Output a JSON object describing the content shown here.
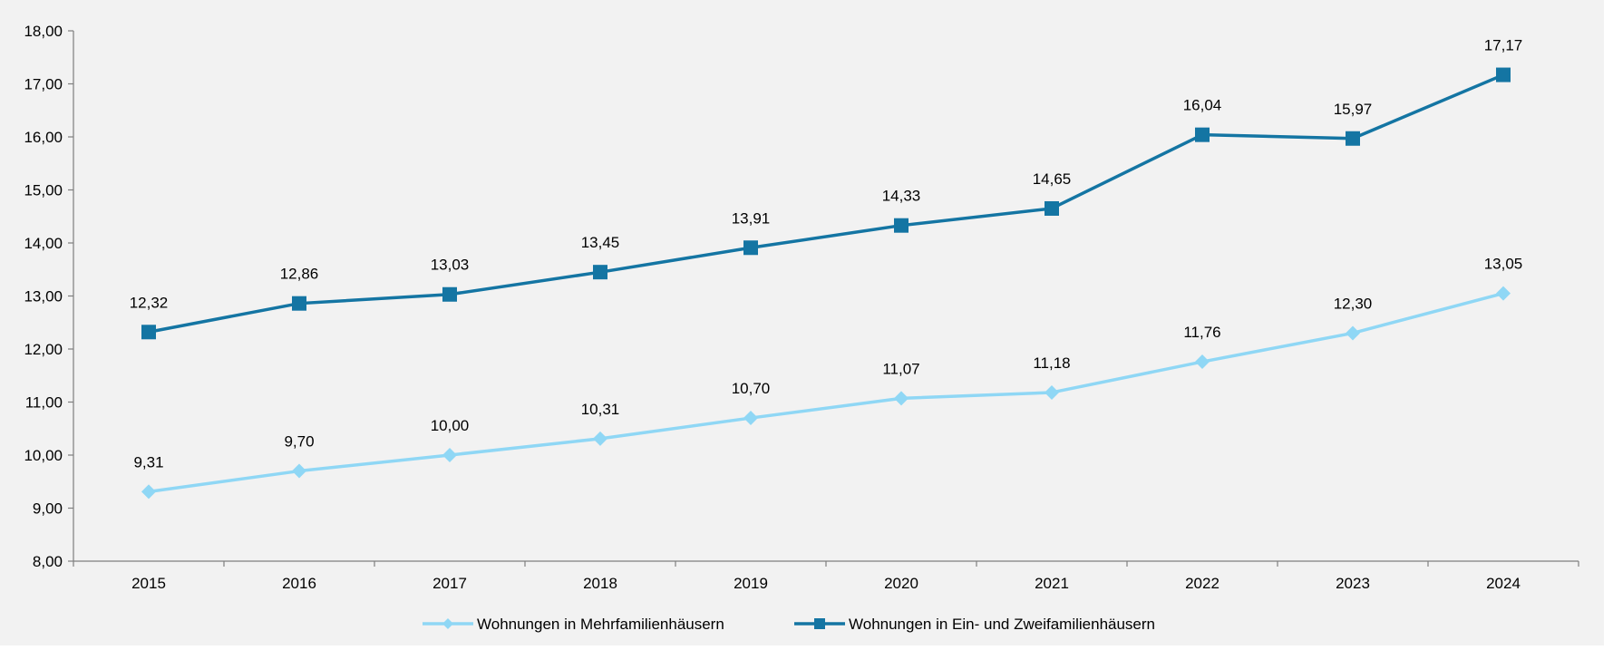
{
  "chart_data": {
    "type": "line",
    "categories": [
      "2015",
      "2016",
      "2017",
      "2018",
      "2019",
      "2020",
      "2021",
      "2022",
      "2023",
      "2024"
    ],
    "series": [
      {
        "name": "Wohnungen in Mehrfamilienhäusern",
        "values": [
          9.31,
          9.7,
          10.0,
          10.31,
          10.7,
          11.07,
          11.18,
          11.76,
          12.3,
          13.05
        ],
        "labels": [
          "9,31",
          "9,70",
          "10,00",
          "10,31",
          "10,70",
          "11,07",
          "11,18",
          "11,76",
          "12,30",
          "13,05"
        ],
        "color": "#8fd7f5",
        "marker": "diamond"
      },
      {
        "name": "Wohnungen in Ein- und Zweifamilienhäusern",
        "values": [
          12.32,
          12.86,
          13.03,
          13.45,
          13.91,
          14.33,
          14.65,
          16.04,
          15.97,
          17.17
        ],
        "labels": [
          "12,32",
          "12,86",
          "13,03",
          "13,45",
          "13,91",
          "14,33",
          "14,65",
          "16,04",
          "15,97",
          "17,17"
        ],
        "color": "#1475a3",
        "marker": "square"
      }
    ],
    "ylim": [
      8,
      18
    ],
    "yticks": [
      "8,00",
      "9,00",
      "10,00",
      "11,00",
      "12,00",
      "13,00",
      "14,00",
      "15,00",
      "16,00",
      "17,00",
      "18,00"
    ],
    "grid": false,
    "legend": "bottom",
    "background": "#f2f2f2"
  }
}
